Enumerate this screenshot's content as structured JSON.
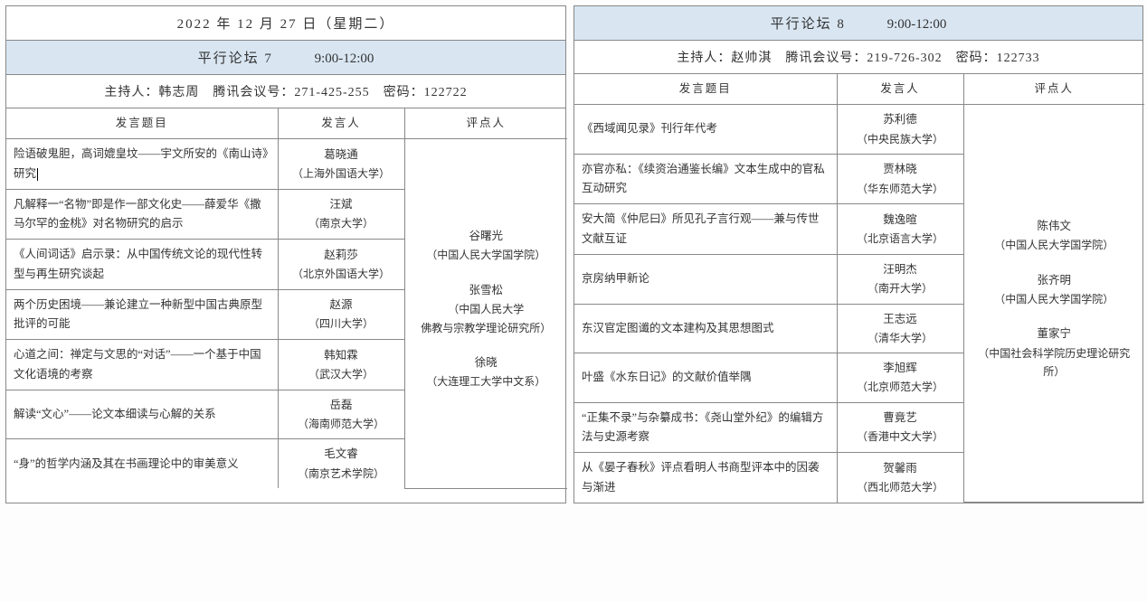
{
  "left": {
    "date": "2022 年 12 月 27 日（星期二）",
    "forum_label": "平行论坛 7",
    "forum_time": "9:00-12:00",
    "host_line": "主持人：韩志周　腾讯会议号：271-425-255　密码：122722",
    "headers": {
      "title": "发言题目",
      "speaker": "发言人",
      "reviewer": "评点人"
    },
    "col_widths": {
      "title": 300,
      "speaker": 140,
      "reviewer": 180
    },
    "rows": [
      {
        "title": "险语破鬼胆，高词媲皇坟——宇文所安的《南山诗》研究",
        "speaker": "葛晓通",
        "affil": "（上海外国语大学）",
        "has_cursor": true
      },
      {
        "title": "凡解释一“名物”即是作一部文化史——薛爱华《撒马尔罕的金桃》对名物研究的启示",
        "speaker": "汪斌",
        "affil": "（南京大学）"
      },
      {
        "title": "《人间词话》启示录：从中国传统文论的现代性转型与再生研究谈起",
        "speaker": "赵莉莎",
        "affil": "（北京外国语大学）"
      },
      {
        "title": "两个历史困境——兼论建立一种新型中国古典原型批评的可能",
        "speaker": "赵源",
        "affil": "（四川大学）"
      },
      {
        "title": "心道之间：禅定与文思的“对话”——一个基于中国文化语境的考察",
        "speaker": "韩知霖",
        "affil": "（武汉大学）"
      },
      {
        "title": "解读“文心”——论文本细读与心解的关系",
        "speaker": "岳磊",
        "affil": "（海南师范大学）"
      },
      {
        "title": "“身”的哲学内涵及其在书画理论中的审美意义",
        "speaker": "毛文睿",
        "affil": "（南京艺术学院）"
      }
    ],
    "reviewers": [
      {
        "name": "谷曙光",
        "affil": "（中国人民大学国学院）"
      },
      {
        "name": "张雪松",
        "affil": "（中国人民大学\n佛教与宗教学理论研究所）"
      },
      {
        "name": "徐晓",
        "affil": "（大连理工大学中文系）"
      }
    ]
  },
  "right": {
    "forum_label": "平行论坛 8",
    "forum_time": "9:00-12:00",
    "host_line": "主持人：赵帅淇　腾讯会议号：219-726-302　密码：122733",
    "headers": {
      "title": "发言题目",
      "speaker": "发言人",
      "reviewer": "评点人"
    },
    "col_widths": {
      "title": 290,
      "speaker": 140,
      "reviewer": 200
    },
    "rows": [
      {
        "title": "《西域闻见录》刊行年代考",
        "speaker": "苏利德",
        "affil": "（中央民族大学）"
      },
      {
        "title": "亦官亦私：《续资治通鉴长编》文本生成中的官私互动研究",
        "speaker": "贾林晓",
        "affil": "（华东师范大学）"
      },
      {
        "title": "安大简《仲尼曰》所见孔子言行观——兼与传世文献互证",
        "speaker": "魏逸暄",
        "affil": "（北京语言大学）"
      },
      {
        "title": "京房纳甲新论",
        "speaker": "汪明杰",
        "affil": "（南开大学）"
      },
      {
        "title": "东汉官定图谶的文本建构及其思想图式",
        "speaker": "王志远",
        "affil": "（清华大学）"
      },
      {
        "title": "叶盛《水东日记》的文献价值举隅",
        "speaker": "李旭辉",
        "affil": "（北京师范大学）"
      },
      {
        "title": "“正集不录”与杂纂成书：《尧山堂外纪》的编辑方法与史源考察",
        "speaker": "曹竟艺",
        "affil": "（香港中文大学）"
      },
      {
        "title": "从《晏子春秋》评点看明人书商型评本中的因袭与渐进",
        "speaker": "贺馨雨",
        "affil": "（西北师范大学）"
      }
    ],
    "reviewers": [
      {
        "name": "陈伟文",
        "affil": "（中国人民大学国学院）"
      },
      {
        "name": "张齐明",
        "affil": "（中国人民大学国学院）"
      },
      {
        "name": "董家宁",
        "affil": "（中国社会科学院历史理论研究所）"
      }
    ]
  },
  "colors": {
    "header_bg": "#d9e6f2",
    "border": "#888888",
    "bg": "#ffffff"
  }
}
